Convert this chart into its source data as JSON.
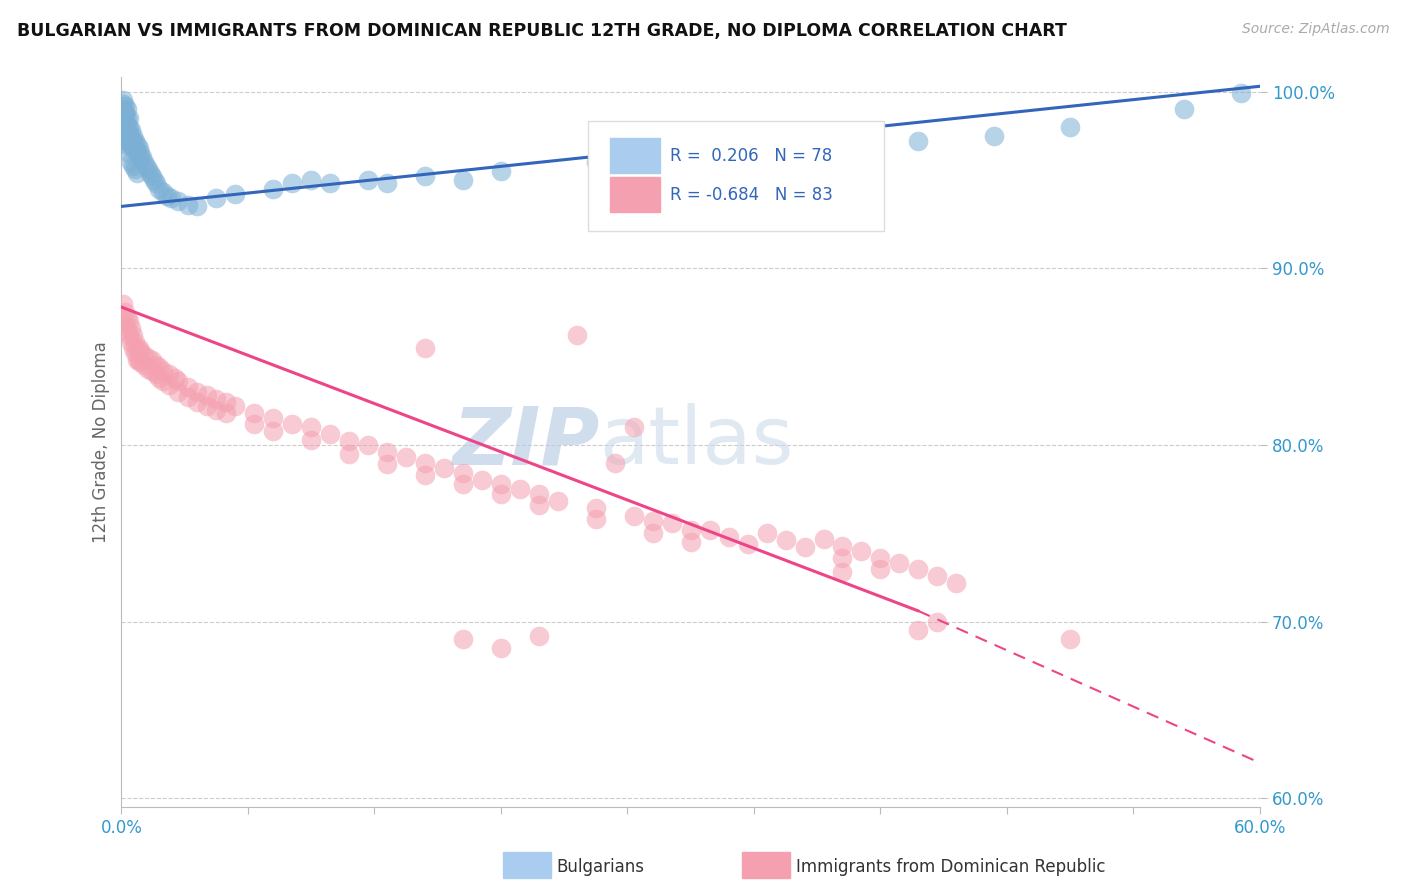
{
  "title": "BULGARIAN VS IMMIGRANTS FROM DOMINICAN REPUBLIC 12TH GRADE, NO DIPLOMA CORRELATION CHART",
  "source": "Source: ZipAtlas.com",
  "ylabel": "12th Grade, No Diploma",
  "legend_labels": [
    "Bulgarians",
    "Immigrants from Dominican Republic"
  ],
  "r_blue": 0.206,
  "n_blue": 78,
  "r_pink": -0.684,
  "n_pink": 83,
  "blue_color": "#7BAFD4",
  "pink_color": "#F4A0B0",
  "blue_line_color": "#3366BB",
  "pink_line_color": "#EE4488",
  "watermark_zip": "ZIP",
  "watermark_atlas": "atlas",
  "xlim": [
    0.0,
    0.6
  ],
  "ylim": [
    0.595,
    1.008
  ],
  "xtick_positions": [
    0.0,
    0.06667,
    0.13333,
    0.2,
    0.26667,
    0.33333,
    0.4,
    0.46667,
    0.53333,
    0.6
  ],
  "xticklabels_shown": {
    "0": "0.0%",
    "9": "60.0%"
  },
  "yticks": [
    0.6,
    0.7,
    0.8,
    0.9,
    1.0
  ],
  "yticklabels": [
    "60.0%",
    "70.0%",
    "80.0%",
    "90.0%",
    "100.0%"
  ],
  "blue_line": {
    "x0": 0.0,
    "y0": 0.935,
    "x1": 0.6,
    "y1": 1.003
  },
  "pink_line_solid": {
    "x0": 0.0,
    "y0": 0.878,
    "x1": 0.42,
    "y1": 0.706
  },
  "pink_line_dashed": {
    "x0": 0.42,
    "y0": 0.706,
    "x1": 0.6,
    "y1": 0.62
  },
  "blue_dots": [
    [
      0.001,
      0.995
    ],
    [
      0.001,
      0.99
    ],
    [
      0.001,
      0.986
    ],
    [
      0.001,
      0.983
    ],
    [
      0.002,
      0.992
    ],
    [
      0.002,
      0.988
    ],
    [
      0.002,
      0.985
    ],
    [
      0.002,
      0.98
    ],
    [
      0.002,
      0.977
    ],
    [
      0.003,
      0.99
    ],
    [
      0.003,
      0.985
    ],
    [
      0.003,
      0.98
    ],
    [
      0.003,
      0.975
    ],
    [
      0.003,
      0.972
    ],
    [
      0.004,
      0.985
    ],
    [
      0.004,
      0.98
    ],
    [
      0.004,
      0.976
    ],
    [
      0.004,
      0.972
    ],
    [
      0.005,
      0.978
    ],
    [
      0.005,
      0.974
    ],
    [
      0.005,
      0.97
    ],
    [
      0.006,
      0.975
    ],
    [
      0.006,
      0.972
    ],
    [
      0.006,
      0.968
    ],
    [
      0.007,
      0.972
    ],
    [
      0.007,
      0.968
    ],
    [
      0.008,
      0.97
    ],
    [
      0.008,
      0.966
    ],
    [
      0.009,
      0.968
    ],
    [
      0.01,
      0.965
    ],
    [
      0.01,
      0.962
    ],
    [
      0.011,
      0.963
    ],
    [
      0.012,
      0.96
    ],
    [
      0.013,
      0.958
    ],
    [
      0.014,
      0.956
    ],
    [
      0.015,
      0.954
    ],
    [
      0.016,
      0.952
    ],
    [
      0.017,
      0.95
    ],
    [
      0.018,
      0.948
    ],
    [
      0.02,
      0.945
    ],
    [
      0.022,
      0.943
    ],
    [
      0.024,
      0.941
    ],
    [
      0.026,
      0.94
    ],
    [
      0.001,
      0.98
    ],
    [
      0.002,
      0.975
    ],
    [
      0.003,
      0.97
    ],
    [
      0.004,
      0.965
    ],
    [
      0.005,
      0.96
    ],
    [
      0.006,
      0.958
    ],
    [
      0.007,
      0.956
    ],
    [
      0.008,
      0.954
    ],
    [
      0.03,
      0.938
    ],
    [
      0.035,
      0.936
    ],
    [
      0.04,
      0.935
    ],
    [
      0.05,
      0.94
    ],
    [
      0.06,
      0.942
    ],
    [
      0.08,
      0.945
    ],
    [
      0.09,
      0.948
    ],
    [
      0.1,
      0.95
    ],
    [
      0.11,
      0.948
    ],
    [
      0.13,
      0.95
    ],
    [
      0.14,
      0.948
    ],
    [
      0.16,
      0.952
    ],
    [
      0.18,
      0.95
    ],
    [
      0.2,
      0.955
    ],
    [
      0.25,
      0.96
    ],
    [
      0.28,
      0.962
    ],
    [
      0.3,
      0.963
    ],
    [
      0.35,
      0.965
    ],
    [
      0.38,
      0.968
    ],
    [
      0.42,
      0.972
    ],
    [
      0.46,
      0.975
    ],
    [
      0.5,
      0.98
    ],
    [
      0.56,
      0.99
    ],
    [
      0.59,
      0.999
    ],
    [
      0.001,
      0.993
    ],
    [
      0.002,
      0.982
    ]
  ],
  "pink_dots": [
    [
      0.001,
      0.88
    ],
    [
      0.002,
      0.875
    ],
    [
      0.002,
      0.868
    ],
    [
      0.003,
      0.872
    ],
    [
      0.003,
      0.865
    ],
    [
      0.004,
      0.87
    ],
    [
      0.004,
      0.862
    ],
    [
      0.005,
      0.866
    ],
    [
      0.005,
      0.858
    ],
    [
      0.006,
      0.862
    ],
    [
      0.006,
      0.855
    ],
    [
      0.007,
      0.858
    ],
    [
      0.007,
      0.852
    ],
    [
      0.008,
      0.854
    ],
    [
      0.008,
      0.848
    ],
    [
      0.009,
      0.855
    ],
    [
      0.009,
      0.848
    ],
    [
      0.01,
      0.853
    ],
    [
      0.01,
      0.847
    ],
    [
      0.012,
      0.851
    ],
    [
      0.012,
      0.845
    ],
    [
      0.014,
      0.849
    ],
    [
      0.014,
      0.843
    ],
    [
      0.016,
      0.848
    ],
    [
      0.016,
      0.842
    ],
    [
      0.018,
      0.845
    ],
    [
      0.018,
      0.84
    ],
    [
      0.02,
      0.844
    ],
    [
      0.02,
      0.838
    ],
    [
      0.022,
      0.842
    ],
    [
      0.022,
      0.836
    ],
    [
      0.025,
      0.84
    ],
    [
      0.025,
      0.834
    ],
    [
      0.028,
      0.838
    ],
    [
      0.03,
      0.836
    ],
    [
      0.03,
      0.83
    ],
    [
      0.035,
      0.833
    ],
    [
      0.035,
      0.827
    ],
    [
      0.04,
      0.83
    ],
    [
      0.04,
      0.824
    ],
    [
      0.045,
      0.828
    ],
    [
      0.045,
      0.822
    ],
    [
      0.05,
      0.826
    ],
    [
      0.05,
      0.82
    ],
    [
      0.055,
      0.824
    ],
    [
      0.055,
      0.818
    ],
    [
      0.06,
      0.822
    ],
    [
      0.07,
      0.818
    ],
    [
      0.07,
      0.812
    ],
    [
      0.08,
      0.815
    ],
    [
      0.08,
      0.808
    ],
    [
      0.09,
      0.812
    ],
    [
      0.1,
      0.81
    ],
    [
      0.1,
      0.803
    ],
    [
      0.11,
      0.806
    ],
    [
      0.12,
      0.802
    ],
    [
      0.12,
      0.795
    ],
    [
      0.13,
      0.8
    ],
    [
      0.14,
      0.796
    ],
    [
      0.14,
      0.789
    ],
    [
      0.15,
      0.793
    ],
    [
      0.16,
      0.79
    ],
    [
      0.16,
      0.783
    ],
    [
      0.17,
      0.787
    ],
    [
      0.18,
      0.784
    ],
    [
      0.18,
      0.778
    ],
    [
      0.19,
      0.78
    ],
    [
      0.2,
      0.778
    ],
    [
      0.2,
      0.772
    ],
    [
      0.21,
      0.775
    ],
    [
      0.22,
      0.772
    ],
    [
      0.22,
      0.766
    ],
    [
      0.23,
      0.768
    ],
    [
      0.25,
      0.764
    ],
    [
      0.25,
      0.758
    ],
    [
      0.27,
      0.76
    ],
    [
      0.28,
      0.757
    ],
    [
      0.28,
      0.75
    ],
    [
      0.29,
      0.756
    ],
    [
      0.3,
      0.752
    ],
    [
      0.3,
      0.745
    ],
    [
      0.31,
      0.752
    ],
    [
      0.32,
      0.748
    ],
    [
      0.33,
      0.744
    ],
    [
      0.34,
      0.75
    ],
    [
      0.35,
      0.746
    ],
    [
      0.36,
      0.742
    ],
    [
      0.37,
      0.747
    ],
    [
      0.38,
      0.743
    ],
    [
      0.38,
      0.736
    ],
    [
      0.39,
      0.74
    ],
    [
      0.4,
      0.736
    ],
    [
      0.4,
      0.73
    ],
    [
      0.41,
      0.733
    ],
    [
      0.42,
      0.73
    ],
    [
      0.43,
      0.726
    ],
    [
      0.44,
      0.722
    ],
    [
      0.16,
      0.855
    ],
    [
      0.24,
      0.862
    ],
    [
      0.26,
      0.79
    ],
    [
      0.27,
      0.81
    ],
    [
      0.38,
      0.728
    ],
    [
      0.42,
      0.695
    ],
    [
      0.43,
      0.7
    ],
    [
      0.5,
      0.69
    ],
    [
      0.18,
      0.69
    ],
    [
      0.2,
      0.685
    ],
    [
      0.22,
      0.692
    ]
  ]
}
